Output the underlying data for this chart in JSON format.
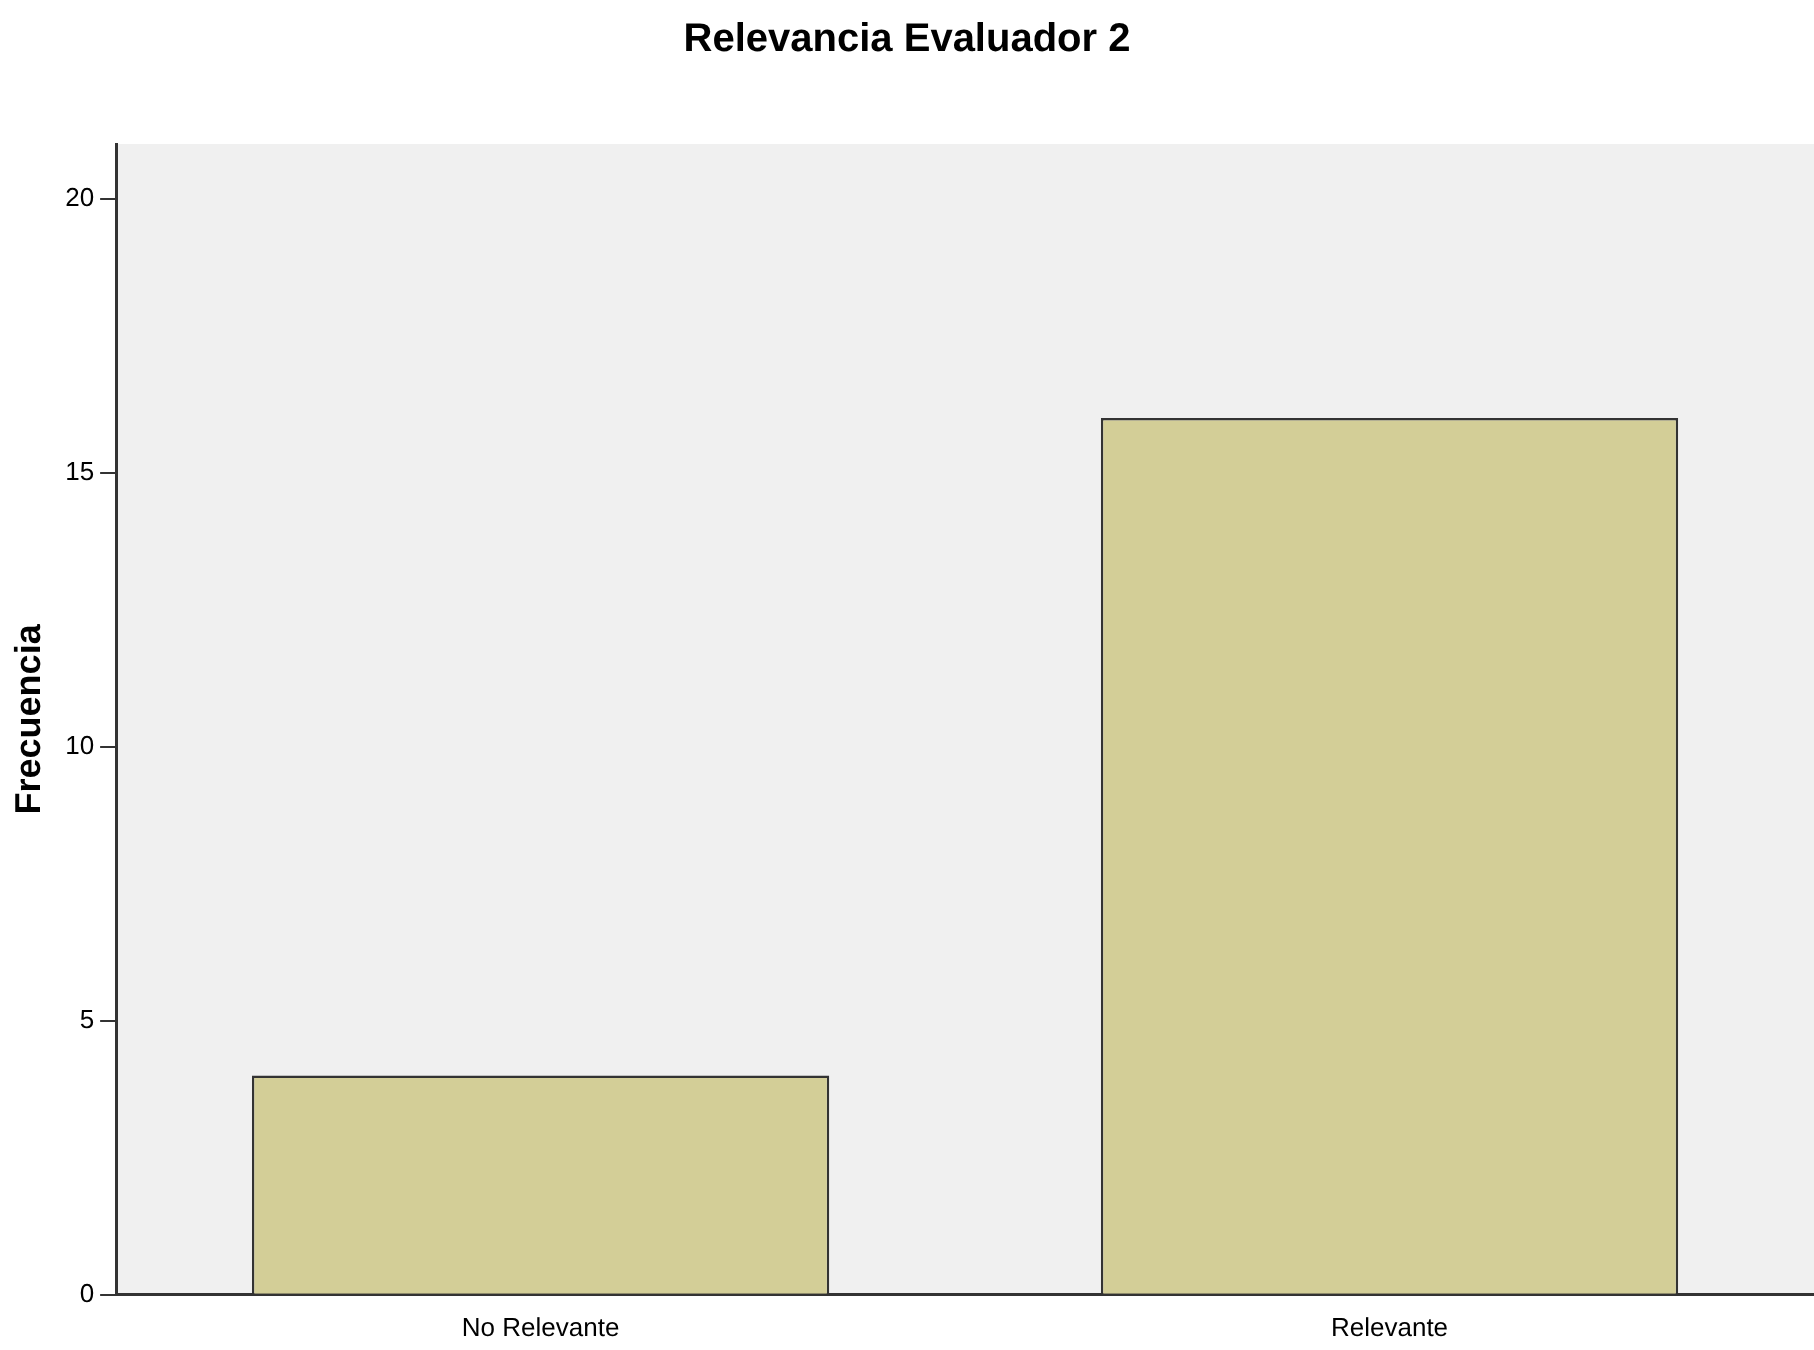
{
  "chart_data": {
    "type": "bar",
    "title": "Relevancia Evaluador 2",
    "ylabel": "Frecuencia",
    "categories": [
      "No Relevante",
      "Relevante"
    ],
    "values": [
      4,
      16
    ],
    "color": "#d3ce97",
    "ylim": [
      0,
      21
    ],
    "yticks": [
      0,
      5,
      10,
      15,
      20
    ],
    "grid": false,
    "legend": false
  }
}
